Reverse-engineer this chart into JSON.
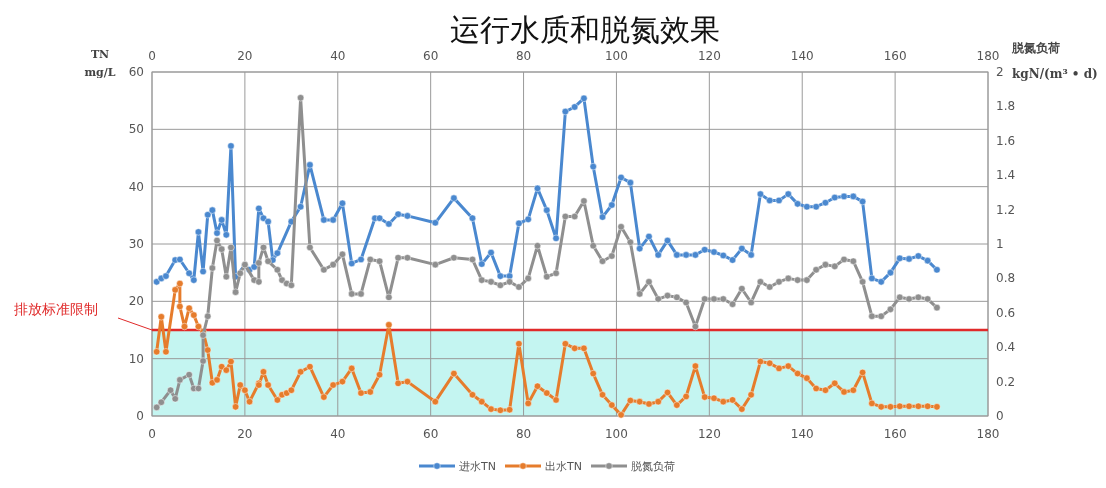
{
  "chart_data": {
    "type": "line",
    "title": "运行水质和脱氮效果",
    "ylabel": "TN\nmg/L",
    "y2label": "脱氮负荷\nkgN/(m³ • d)",
    "xlim": [
      0,
      180
    ],
    "xticks": [
      0,
      20,
      40,
      60,
      80,
      100,
      120,
      140,
      160,
      180
    ],
    "x2lim": [
      0,
      180
    ],
    "x2ticks": [
      0,
      20,
      40,
      60,
      80,
      100,
      120,
      140,
      160,
      180
    ],
    "ylim": [
      0,
      60
    ],
    "yticks": [
      0,
      10,
      20,
      30,
      40,
      50,
      60
    ],
    "y2lim": [
      0,
      2
    ],
    "y2ticks": [
      0,
      0.2,
      0.4,
      0.6,
      0.8,
      1,
      1.2,
      1.4,
      1.6,
      1.8,
      2
    ],
    "grid": true,
    "legend": "bottom",
    "marker": "circle",
    "line_style": "solid",
    "bands": [
      {
        "axis": "y",
        "from": 0,
        "to": 15,
        "color": "#c4f5f1"
      }
    ],
    "ref_lines": [
      {
        "axis": "y",
        "value": 15,
        "label": "排放标准限制",
        "color": "#e02a2a"
      }
    ],
    "series": [
      {
        "name": "进水TN",
        "color": "#4a88cf",
        "x": [
          1,
          2,
          3,
          5,
          6,
          8,
          9,
          10,
          11,
          12,
          13,
          14,
          15,
          16,
          17,
          18,
          20,
          21,
          22,
          23,
          24,
          25,
          26,
          27,
          30,
          32,
          34,
          37,
          39,
          41,
          43,
          45,
          48,
          49,
          51,
          53,
          55,
          61,
          65,
          69,
          71,
          73,
          75,
          77,
          79,
          81,
          83,
          85,
          87,
          89,
          91,
          93,
          95,
          97,
          99,
          101,
          103,
          105,
          107,
          109,
          111,
          113,
          115,
          117,
          119,
          121,
          123,
          125,
          127,
          129,
          131,
          133,
          135,
          137,
          139,
          141,
          143,
          145,
          147,
          149,
          151,
          153,
          155,
          157,
          159,
          161,
          163,
          165,
          167,
          169
        ],
        "values": [
          23.4,
          24.0,
          24.4,
          27.2,
          27.3,
          24.9,
          23.7,
          32.1,
          25.2,
          35.1,
          35.9,
          31.9,
          34.2,
          31.6,
          47.1,
          24.3,
          26.3,
          25.5,
          26.0,
          36.2,
          34.5,
          33.9,
          27.2,
          28.4,
          33.9,
          36.5,
          43.8,
          34.2,
          34.2,
          37.1,
          26.6,
          27.3,
          34.5,
          34.5,
          33.5,
          35.2,
          34.9,
          33.7,
          38.0,
          34.5,
          26.5,
          28.5,
          24.4,
          24.4,
          33.6,
          34.3,
          39.7,
          35.9,
          31.0,
          53.1,
          53.9,
          55.4,
          43.5,
          34.7,
          36.8,
          41.6,
          40.7,
          29.2,
          31.3,
          28.1,
          30.6,
          28.1,
          28.1,
          28.1,
          29.0,
          28.6,
          28.0,
          27.2,
          29.2,
          28.1,
          38.7,
          37.6,
          37.6,
          38.7,
          37.0,
          36.5,
          36.5,
          37.2,
          38.1,
          38.3,
          38.3,
          37.4,
          24.0,
          23.4,
          25.0,
          27.5,
          27.4,
          27.9,
          27.1,
          25.5
        ]
      },
      {
        "name": "出水TN",
        "color": "#e67c2c",
        "x": [
          1,
          2,
          3,
          5,
          6,
          6,
          7,
          8,
          9,
          10,
          11,
          12,
          13,
          14,
          15,
          16,
          17,
          18,
          19,
          20,
          21,
          23,
          23,
          24,
          25,
          27,
          28,
          29,
          30,
          32,
          34,
          37,
          39,
          41,
          43,
          45,
          47,
          49,
          51,
          53,
          55,
          61,
          65,
          69,
          71,
          73,
          75,
          77,
          79,
          81,
          83,
          85,
          87,
          89,
          91,
          93,
          95,
          97,
          99,
          101,
          103,
          105,
          107,
          109,
          111,
          113,
          115,
          117,
          119,
          121,
          123,
          125,
          127,
          129,
          131,
          133,
          135,
          137,
          139,
          141,
          143,
          145,
          147,
          149,
          151,
          153,
          155,
          157,
          159,
          161,
          163,
          165,
          167,
          169
        ],
        "values": [
          11.2,
          17.3,
          11.2,
          22.0,
          23.1,
          19.1,
          15.6,
          18.8,
          17.6,
          15.6,
          14.7,
          11.5,
          5.8,
          6.3,
          8.6,
          8.0,
          9.5,
          1.6,
          5.4,
          4.5,
          2.5,
          5.7,
          5.4,
          7.7,
          5.4,
          2.8,
          3.7,
          4.0,
          4.5,
          7.7,
          8.6,
          3.3,
          5.4,
          6.0,
          8.3,
          4.0,
          4.2,
          7.2,
          15.9,
          5.7,
          6.0,
          2.5,
          7.4,
          3.7,
          2.5,
          1.2,
          1.0,
          1.1,
          12.6,
          2.2,
          5.2,
          4.0,
          2.8,
          12.6,
          11.8,
          11.8,
          7.4,
          3.7,
          1.9,
          0.2,
          2.7,
          2.5,
          2.1,
          2.5,
          4.1,
          1.9,
          3.4,
          8.7,
          3.3,
          3.1,
          2.5,
          2.8,
          1.2,
          3.7,
          9.5,
          9.2,
          8.3,
          8.7,
          7.4,
          6.6,
          4.8,
          4.5,
          5.7,
          4.2,
          4.5,
          7.6,
          2.2,
          1.6,
          1.6,
          1.7,
          1.7,
          1.7,
          1.7,
          1.6
        ]
      },
      {
        "name": "脱氮负荷",
        "color": "#8f8f8f",
        "axis": "y2",
        "x": [
          1,
          2,
          4,
          5,
          6,
          8,
          9,
          10,
          11,
          11,
          12,
          13,
          14,
          15,
          16,
          17,
          18,
          19,
          20,
          22,
          23,
          23,
          24,
          25,
          27,
          28,
          29,
          30,
          32,
          34,
          37,
          39,
          41,
          43,
          45,
          47,
          49,
          51,
          53,
          55,
          61,
          65,
          69,
          71,
          73,
          75,
          77,
          79,
          81,
          83,
          85,
          87,
          89,
          91,
          93,
          95,
          97,
          99,
          101,
          103,
          105,
          107,
          109,
          111,
          113,
          115,
          117,
          119,
          121,
          123,
          125,
          127,
          129,
          131,
          133,
          135,
          137,
          139,
          141,
          143,
          145,
          147,
          149,
          151,
          153,
          155,
          157,
          159,
          161,
          163,
          165,
          167,
          169
        ],
        "values": [
          0.05,
          0.08,
          0.15,
          0.1,
          0.21,
          0.24,
          0.16,
          0.16,
          0.32,
          0.47,
          0.58,
          0.86,
          1.02,
          0.97,
          0.81,
          0.98,
          0.72,
          0.83,
          0.88,
          0.79,
          0.78,
          0.89,
          0.98,
          0.9,
          0.85,
          0.79,
          0.77,
          0.76,
          1.85,
          0.98,
          0.85,
          0.88,
          0.94,
          0.71,
          0.71,
          0.91,
          0.9,
          0.69,
          0.92,
          0.92,
          0.88,
          0.92,
          0.91,
          0.79,
          0.78,
          0.76,
          0.78,
          0.75,
          0.8,
          0.99,
          0.81,
          0.83,
          1.16,
          1.16,
          1.25,
          0.99,
          0.9,
          0.93,
          1.1,
          1.01,
          0.71,
          0.78,
          0.68,
          0.7,
          0.69,
          0.66,
          0.52,
          0.68,
          0.68,
          0.68,
          0.65,
          0.74,
          0.66,
          0.78,
          0.75,
          0.78,
          0.8,
          0.79,
          0.79,
          0.85,
          0.88,
          0.87,
          0.91,
          0.9,
          0.78,
          0.58,
          0.58,
          0.62,
          0.69,
          0.68,
          0.69,
          0.68,
          0.63
        ]
      }
    ]
  }
}
